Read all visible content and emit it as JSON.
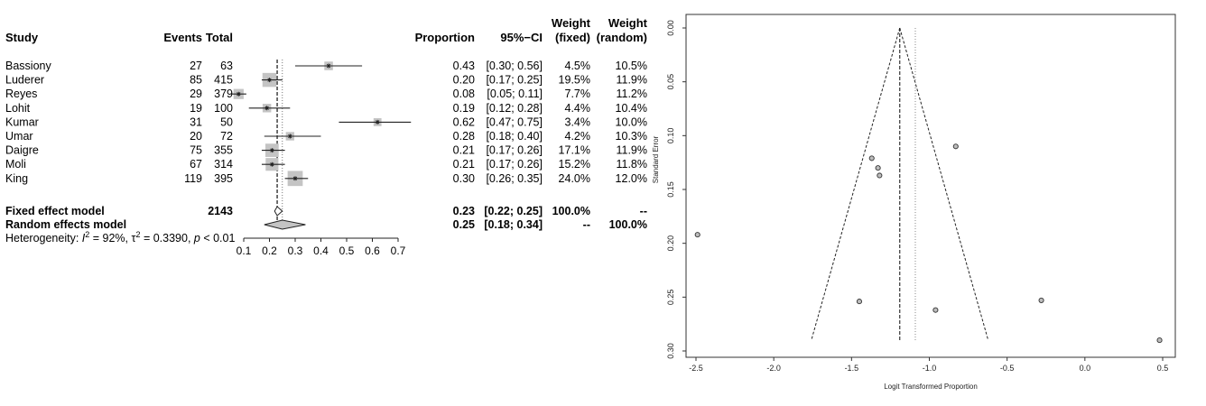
{
  "chart_data": [
    {
      "type": "forest",
      "headers": {
        "study": "Study",
        "events": "Events",
        "total": "Total",
        "proportion": "Proportion",
        "ci": "95%−CI",
        "weight_fixed_1": "Weight",
        "weight_fixed_2": "(fixed)",
        "weight_random_1": "Weight",
        "weight_random_2": "(random)"
      },
      "studies": [
        {
          "name": "Bassiony",
          "events": "27",
          "total": "63",
          "prop": 0.43,
          "lo": 0.3,
          "hi": 0.56,
          "prop_text": "0.43",
          "ci_text": "[0.30; 0.56]",
          "wf": "4.5%",
          "wr": "10.5%",
          "wf_num": 4.5
        },
        {
          "name": "Luderer",
          "events": "85",
          "total": "415",
          "prop": 0.2,
          "lo": 0.17,
          "hi": 0.25,
          "prop_text": "0.20",
          "ci_text": "[0.17; 0.25]",
          "wf": "19.5%",
          "wr": "11.9%",
          "wf_num": 19.5
        },
        {
          "name": "Reyes",
          "events": "29",
          "total": "379",
          "prop": 0.08,
          "lo": 0.05,
          "hi": 0.11,
          "prop_text": "0.08",
          "ci_text": "[0.05; 0.11]",
          "wf": "7.7%",
          "wr": "11.2%",
          "wf_num": 7.7
        },
        {
          "name": "Lohit",
          "events": "19",
          "total": "100",
          "prop": 0.19,
          "lo": 0.12,
          "hi": 0.28,
          "prop_text": "0.19",
          "ci_text": "[0.12; 0.28]",
          "wf": "4.4%",
          "wr": "10.4%",
          "wf_num": 4.4
        },
        {
          "name": "Kumar",
          "events": "31",
          "total": "50",
          "prop": 0.62,
          "lo": 0.47,
          "hi": 0.75,
          "prop_text": "0.62",
          "ci_text": "[0.47; 0.75]",
          "wf": "3.4%",
          "wr": "10.0%",
          "wf_num": 3.4
        },
        {
          "name": "Umar",
          "events": "20",
          "total": "72",
          "prop": 0.28,
          "lo": 0.18,
          "hi": 0.4,
          "prop_text": "0.28",
          "ci_text": "[0.18; 0.40]",
          "wf": "4.2%",
          "wr": "10.3%",
          "wf_num": 4.2
        },
        {
          "name": "Daigre",
          "events": "75",
          "total": "355",
          "prop": 0.21,
          "lo": 0.17,
          "hi": 0.26,
          "prop_text": "0.21",
          "ci_text": "[0.17; 0.26]",
          "wf": "17.1%",
          "wr": "11.9%",
          "wf_num": 17.1
        },
        {
          "name": "Moli",
          "events": "67",
          "total": "314",
          "prop": 0.21,
          "lo": 0.17,
          "hi": 0.26,
          "prop_text": "0.21",
          "ci_text": "[0.17; 0.26]",
          "wf": "15.2%",
          "wr": "11.8%",
          "wf_num": 15.2
        },
        {
          "name": "King",
          "events": "119",
          "total": "395",
          "prop": 0.3,
          "lo": 0.26,
          "hi": 0.35,
          "prop_text": "0.30",
          "ci_text": "[0.26; 0.35]",
          "wf": "24.0%",
          "wr": "12.0%",
          "wf_num": 24.0
        }
      ],
      "fixed": {
        "label": "Fixed effect model",
        "total": "2143",
        "prop": 0.23,
        "lo": 0.22,
        "hi": 0.25,
        "prop_text": "0.23",
        "ci_text": "[0.22; 0.25]",
        "wf": "100.0%",
        "wr": "--"
      },
      "random": {
        "label": "Random effects model",
        "prop": 0.25,
        "lo": 0.18,
        "hi": 0.34,
        "prop_text": "0.25",
        "ci_text": "[0.18; 0.34]",
        "wf": "--",
        "wr": "100.0%"
      },
      "heterogeneity": {
        "prefix": "Heterogeneity: ",
        "i2_sym": "I",
        "sq": "2",
        "i2_val": " = 92%, ",
        "tau_sym": "τ",
        "tau_val": " = 0.3390, ",
        "p_sym": "p",
        "p_val": " < 0.01"
      },
      "xlim": [
        0.1,
        0.7
      ],
      "xticks": [
        "0.1",
        "0.2",
        "0.3",
        "0.4",
        "0.5",
        "0.6",
        "0.7"
      ]
    },
    {
      "type": "funnel",
      "xlabel": "Logit Transformed Proportion",
      "ylabel": "Standard Error",
      "xlim": [
        -2.5,
        0.5
      ],
      "ylim": [
        0.3,
        0.0
      ],
      "xticks": [
        "-2.5",
        "-2.0",
        "-1.5",
        "-1.0",
        "-0.5",
        "0.0",
        "0.5"
      ],
      "yticks": [
        "0.00",
        "0.05",
        "0.10",
        "0.15",
        "0.20",
        "0.25",
        "0.30"
      ],
      "fixed_center": -1.19,
      "random_center": -1.09,
      "points": [
        {
          "x": -0.83,
          "y": 0.11
        },
        {
          "x": -1.37,
          "y": 0.121
        },
        {
          "x": -1.33,
          "y": 0.13
        },
        {
          "x": -1.32,
          "y": 0.137
        },
        {
          "x": -2.49,
          "y": 0.192
        },
        {
          "x": -1.45,
          "y": 0.254
        },
        {
          "x": -0.96,
          "y": 0.262
        },
        {
          "x": -0.28,
          "y": 0.253
        },
        {
          "x": 0.48,
          "y": 0.29
        }
      ]
    }
  ]
}
